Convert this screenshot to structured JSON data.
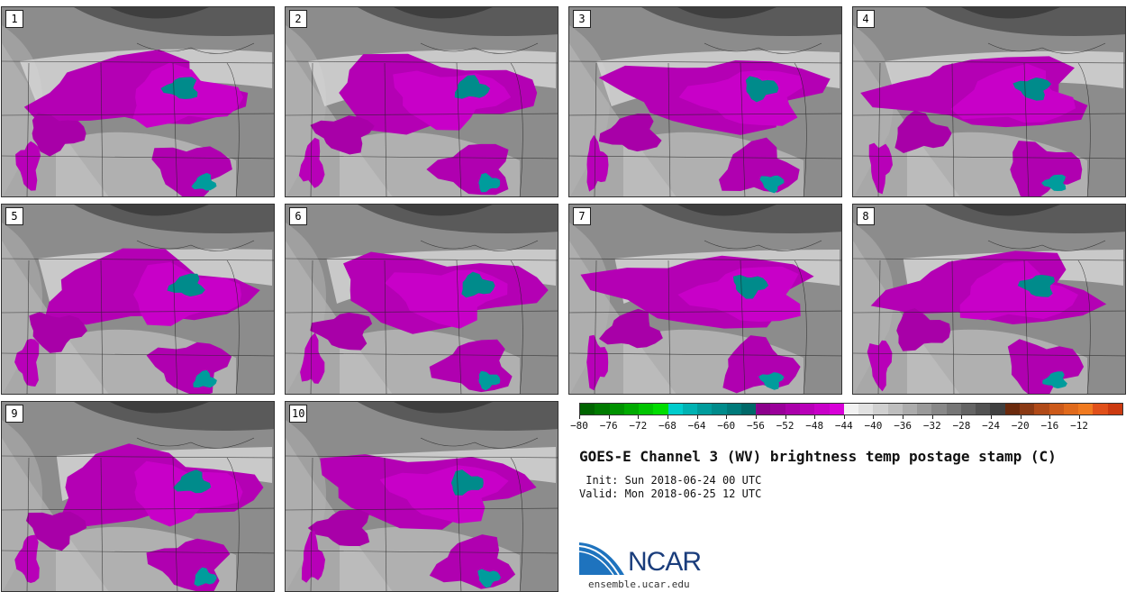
{
  "panels": [
    {
      "label": "1"
    },
    {
      "label": "2"
    },
    {
      "label": "3"
    },
    {
      "label": "4"
    },
    {
      "label": "5"
    },
    {
      "label": "6"
    },
    {
      "label": "7"
    },
    {
      "label": "8"
    },
    {
      "label": "9"
    },
    {
      "label": "10"
    }
  ],
  "colorbar": {
    "colors": [
      "#006400",
      "#007a00",
      "#009200",
      "#00aa00",
      "#00c400",
      "#00dd00",
      "#00cccc",
      "#00b2b2",
      "#009c9c",
      "#008b8b",
      "#007a7a",
      "#006868",
      "#8b008b",
      "#9a009a",
      "#aa00aa",
      "#b800b8",
      "#c800c8",
      "#d800d8",
      "#f2f2f2",
      "#e2e2e2",
      "#d0d0d0",
      "#bebebe",
      "#acacac",
      "#9a9a9a",
      "#888888",
      "#767676",
      "#646464",
      "#525252",
      "#404040",
      "#6b2a0d",
      "#8b3a14",
      "#b04a18",
      "#cc5a1a",
      "#e06a1c",
      "#f07a20",
      "#e0501a",
      "#cc3a10"
    ],
    "tick_labels": [
      "−80",
      "−76",
      "−72",
      "−68",
      "−64",
      "−60",
      "−56",
      "−52",
      "−48",
      "−44",
      "−40",
      "−36",
      "−32",
      "−28",
      "−24",
      "−20",
      "−16",
      "−12"
    ]
  },
  "title": "GOES-E Channel 3 (WV) brightness temp postage stamp (C)",
  "init_line": " Init: Sun 2018-06-24 00 UTC",
  "valid_line": "Valid: Mon 2018-06-25 12 UTC",
  "logo": {
    "text": "NCAR",
    "url": "ensemble.ucar.edu"
  }
}
